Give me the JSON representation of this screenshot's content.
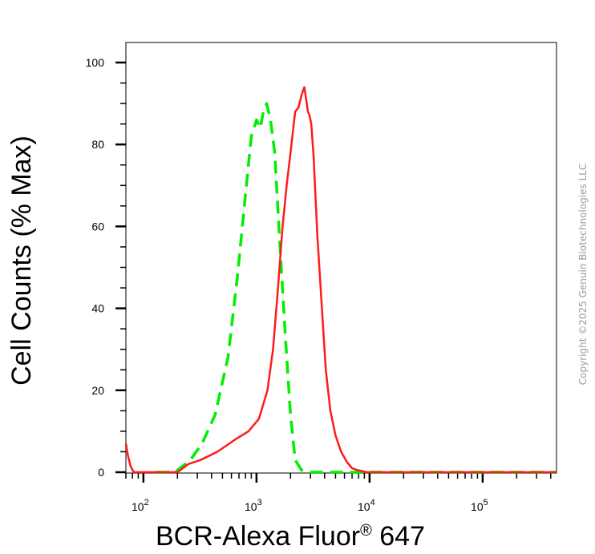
{
  "chart_data": {
    "type": "line",
    "xlabel": "BCR-Alexa Fluor",
    "xlabel_sup": "®",
    "xlabel_tail": " 647",
    "ylabel": "Cell Counts (% Max)",
    "x_scale": "log",
    "xlim": [
      70,
      450000
    ],
    "ylim": [
      0,
      100
    ],
    "y_ticks": [
      0,
      20,
      40,
      60,
      80,
      100
    ],
    "x_tick_labels": [
      {
        "value": 100,
        "base": "10",
        "exp": "2"
      },
      {
        "value": 1000,
        "base": "10",
        "exp": "3"
      },
      {
        "value": 10000,
        "base": "10",
        "exp": "4"
      },
      {
        "value": 100000,
        "base": "10",
        "exp": "5"
      }
    ],
    "series": [
      {
        "color": "#00ee00",
        "style": "dashed",
        "x": [
          130,
          190,
          260,
          330,
          430,
          560,
          680,
          800,
          900,
          1000,
          1080,
          1150,
          1230,
          1330,
          1450,
          1600,
          1800,
          2000,
          2200,
          2500,
          3000,
          4000,
          10000,
          450000
        ],
        "y": [
          0,
          0,
          3,
          7,
          14,
          28,
          48,
          68,
          82,
          86,
          84,
          88,
          90,
          86,
          78,
          57,
          33,
          14,
          3,
          0.5,
          0,
          0,
          0,
          0
        ]
      },
      {
        "color": "#ff1a1a",
        "style": "solid",
        "x": [
          70,
          73,
          77,
          82,
          90,
          150,
          200,
          250,
          320,
          450,
          650,
          850,
          1050,
          1250,
          1400,
          1550,
          1700,
          1850,
          2000,
          2200,
          2350,
          2500,
          2650,
          2750,
          2850,
          2950,
          3050,
          3200,
          3450,
          3750,
          4100,
          4500,
          5000,
          5600,
          6300,
          7000,
          7800,
          8500,
          9500,
          12000,
          450000
        ],
        "y": [
          7,
          4,
          1.5,
          0,
          0,
          0,
          0,
          2,
          3,
          5,
          8,
          10,
          13,
          20,
          30,
          45,
          60,
          70,
          78,
          88,
          89,
          92,
          94,
          91,
          88,
          87,
          85,
          77,
          58,
          42,
          25,
          15,
          9,
          5,
          2.5,
          1,
          0.5,
          0.3,
          0,
          0,
          0
        ]
      }
    ]
  },
  "copyright": "Copyright ©2025 Genuin Biotechnologies LLC"
}
